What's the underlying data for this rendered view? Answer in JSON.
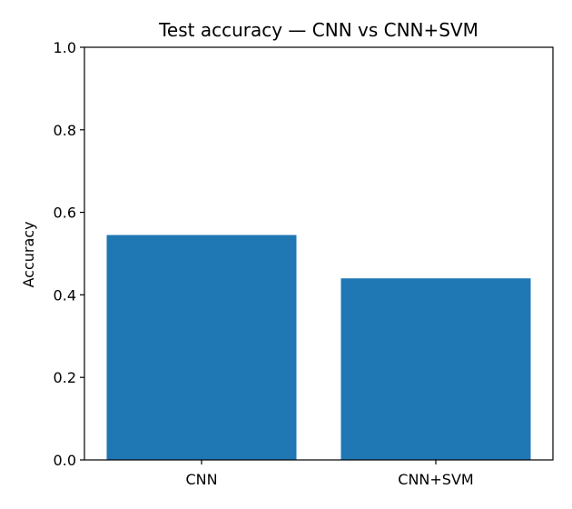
{
  "chart_data": {
    "type": "bar",
    "title": "Test accuracy — CNN vs CNN+SVM",
    "xlabel": "",
    "ylabel": "Accuracy",
    "categories": [
      "CNN",
      "CNN+SVM"
    ],
    "values": [
      0.545,
      0.44
    ],
    "ylim": [
      0,
      1.0
    ],
    "yticks": [
      "0.0",
      "0.2",
      "0.4",
      "0.6",
      "0.8",
      "1.0"
    ],
    "bar_color": "#1f77b4",
    "grid": false,
    "legend": "none"
  }
}
